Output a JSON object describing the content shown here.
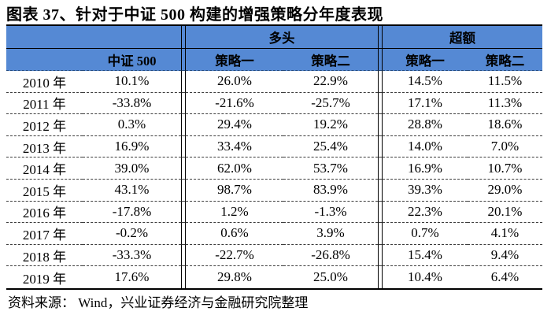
{
  "title": "图表 37、针对于中证 500 构建的增强策略分年度表现",
  "footer": "资料来源： Wind，兴业证券经济与金融研究院整理",
  "colors": {
    "header_background": "#5589d4",
    "table_border": "#000000",
    "row_dash": "#3c3c3c",
    "header_dash": "#23497d",
    "text": "#000000"
  },
  "chart_data": {
    "type": "table",
    "title": "图表 37、针对于中证 500 构建的增强策略分年度表现",
    "group_columns": [
      {
        "label": "多头",
        "span": 2
      },
      {
        "label": "超额",
        "span": 2
      }
    ],
    "columns": [
      "",
      "中证 500",
      "策略一",
      "策略二",
      "策略一",
      "策略二"
    ],
    "rows": [
      [
        "2010 年",
        "10.1%",
        "26.0%",
        "22.9%",
        "14.5%",
        "11.5%"
      ],
      [
        "2011 年",
        "-33.8%",
        "-21.6%",
        "-25.7%",
        "17.1%",
        "11.3%"
      ],
      [
        "2012 年",
        "0.3%",
        "29.4%",
        "19.2%",
        "28.8%",
        "18.6%"
      ],
      [
        "2013 年",
        "16.9%",
        "33.4%",
        "25.4%",
        "14.0%",
        "7.0%"
      ],
      [
        "2014 年",
        "39.0%",
        "62.0%",
        "53.7%",
        "16.9%",
        "10.7%"
      ],
      [
        "2015 年",
        "43.1%",
        "98.7%",
        "83.9%",
        "39.3%",
        "29.0%"
      ],
      [
        "2016 年",
        "-17.8%",
        "1.2%",
        "-1.3%",
        "22.3%",
        "20.1%"
      ],
      [
        "2017 年",
        "-0.2%",
        "0.6%",
        "3.9%",
        "0.7%",
        "4.1%"
      ],
      [
        "2018 年",
        "-33.3%",
        "-22.7%",
        "-26.8%",
        "15.4%",
        "9.4%"
      ],
      [
        "2019 年",
        "17.6%",
        "29.8%",
        "25.0%",
        "10.4%",
        "6.4%"
      ]
    ],
    "source_note": "资料来源： Wind，兴业证券经济与金融研究院整理",
    "layout": {
      "header_rows": 2,
      "column_groups": [
        "",
        "多头",
        "超额"
      ]
    }
  }
}
